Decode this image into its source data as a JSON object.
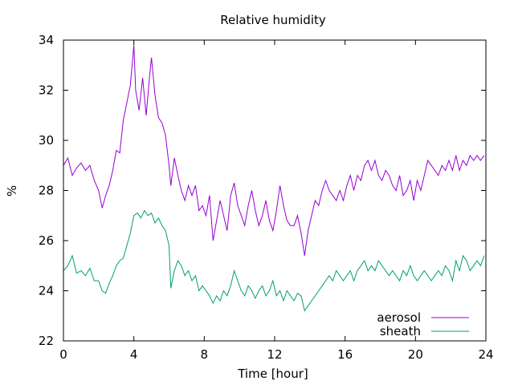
{
  "chart_data": {
    "type": "line",
    "title": "Relative humidity",
    "xlabel": "Time [hour]",
    "ylabel": "%",
    "xlim": [
      0,
      24
    ],
    "ylim": [
      22,
      34
    ],
    "xticks": [
      0,
      4,
      8,
      12,
      16,
      20,
      24
    ],
    "yticks": [
      22,
      24,
      26,
      28,
      30,
      32,
      34
    ],
    "grid": false,
    "legend_position": "bottom-right",
    "series": [
      {
        "name": "aerosol",
        "color": "#9400d3",
        "points": [
          [
            0.0,
            29.0
          ],
          [
            0.25,
            29.3
          ],
          [
            0.5,
            28.6
          ],
          [
            0.75,
            28.9
          ],
          [
            1.0,
            29.1
          ],
          [
            1.25,
            28.8
          ],
          [
            1.5,
            29.0
          ],
          [
            1.75,
            28.4
          ],
          [
            2.0,
            28.0
          ],
          [
            2.2,
            27.3
          ],
          [
            2.4,
            27.8
          ],
          [
            2.6,
            28.2
          ],
          [
            2.8,
            28.8
          ],
          [
            3.0,
            29.6
          ],
          [
            3.2,
            29.5
          ],
          [
            3.4,
            30.8
          ],
          [
            3.6,
            31.5
          ],
          [
            3.8,
            32.2
          ],
          [
            4.0,
            33.8
          ],
          [
            4.1,
            32.0
          ],
          [
            4.3,
            31.2
          ],
          [
            4.5,
            32.5
          ],
          [
            4.7,
            31.0
          ],
          [
            4.9,
            32.6
          ],
          [
            5.0,
            33.3
          ],
          [
            5.2,
            31.8
          ],
          [
            5.4,
            30.9
          ],
          [
            5.6,
            30.7
          ],
          [
            5.8,
            30.2
          ],
          [
            6.0,
            29.0
          ],
          [
            6.1,
            28.2
          ],
          [
            6.3,
            29.3
          ],
          [
            6.5,
            28.6
          ],
          [
            6.7,
            28.0
          ],
          [
            6.9,
            27.6
          ],
          [
            7.1,
            28.2
          ],
          [
            7.3,
            27.8
          ],
          [
            7.5,
            28.2
          ],
          [
            7.7,
            27.2
          ],
          [
            7.9,
            27.4
          ],
          [
            8.1,
            27.0
          ],
          [
            8.3,
            27.8
          ],
          [
            8.5,
            26.0
          ],
          [
            8.7,
            26.8
          ],
          [
            8.9,
            27.6
          ],
          [
            9.1,
            27.0
          ],
          [
            9.3,
            26.4
          ],
          [
            9.5,
            27.8
          ],
          [
            9.7,
            28.3
          ],
          [
            9.9,
            27.4
          ],
          [
            10.1,
            27.0
          ],
          [
            10.3,
            26.6
          ],
          [
            10.5,
            27.4
          ],
          [
            10.7,
            28.0
          ],
          [
            10.9,
            27.2
          ],
          [
            11.1,
            26.6
          ],
          [
            11.3,
            27.0
          ],
          [
            11.5,
            27.6
          ],
          [
            11.7,
            26.8
          ],
          [
            11.9,
            26.4
          ],
          [
            12.1,
            27.2
          ],
          [
            12.3,
            28.2
          ],
          [
            12.5,
            27.4
          ],
          [
            12.7,
            26.8
          ],
          [
            12.9,
            26.6
          ],
          [
            13.1,
            26.6
          ],
          [
            13.3,
            27.0
          ],
          [
            13.5,
            26.3
          ],
          [
            13.7,
            25.4
          ],
          [
            13.9,
            26.4
          ],
          [
            14.1,
            27.0
          ],
          [
            14.3,
            27.6
          ],
          [
            14.5,
            27.4
          ],
          [
            14.7,
            28.0
          ],
          [
            14.9,
            28.4
          ],
          [
            15.1,
            28.0
          ],
          [
            15.3,
            27.8
          ],
          [
            15.5,
            27.6
          ],
          [
            15.7,
            28.0
          ],
          [
            15.9,
            27.6
          ],
          [
            16.1,
            28.2
          ],
          [
            16.3,
            28.6
          ],
          [
            16.5,
            28.0
          ],
          [
            16.7,
            28.6
          ],
          [
            16.9,
            28.4
          ],
          [
            17.1,
            29.0
          ],
          [
            17.3,
            29.2
          ],
          [
            17.5,
            28.8
          ],
          [
            17.7,
            29.2
          ],
          [
            17.9,
            28.6
          ],
          [
            18.1,
            28.4
          ],
          [
            18.3,
            28.8
          ],
          [
            18.5,
            28.6
          ],
          [
            18.7,
            28.2
          ],
          [
            18.9,
            28.0
          ],
          [
            19.1,
            28.6
          ],
          [
            19.3,
            27.8
          ],
          [
            19.5,
            28.0
          ],
          [
            19.7,
            28.4
          ],
          [
            19.9,
            27.6
          ],
          [
            20.1,
            28.4
          ],
          [
            20.3,
            28.0
          ],
          [
            20.5,
            28.6
          ],
          [
            20.7,
            29.2
          ],
          [
            20.9,
            29.0
          ],
          [
            21.1,
            28.8
          ],
          [
            21.3,
            28.6
          ],
          [
            21.5,
            29.0
          ],
          [
            21.7,
            28.8
          ],
          [
            21.9,
            29.2
          ],
          [
            22.1,
            28.8
          ],
          [
            22.3,
            29.4
          ],
          [
            22.5,
            28.8
          ],
          [
            22.7,
            29.2
          ],
          [
            22.9,
            29.0
          ],
          [
            23.1,
            29.4
          ],
          [
            23.3,
            29.2
          ],
          [
            23.5,
            29.4
          ],
          [
            23.7,
            29.2
          ],
          [
            23.9,
            29.4
          ]
        ]
      },
      {
        "name": "sheath",
        "color": "#009e73",
        "points": [
          [
            0.0,
            24.8
          ],
          [
            0.25,
            25.0
          ],
          [
            0.5,
            25.4
          ],
          [
            0.75,
            24.7
          ],
          [
            1.0,
            24.8
          ],
          [
            1.25,
            24.6
          ],
          [
            1.5,
            24.9
          ],
          [
            1.75,
            24.4
          ],
          [
            2.0,
            24.4
          ],
          [
            2.2,
            24.0
          ],
          [
            2.4,
            23.9
          ],
          [
            2.6,
            24.3
          ],
          [
            2.8,
            24.6
          ],
          [
            3.0,
            25.0
          ],
          [
            3.2,
            25.2
          ],
          [
            3.4,
            25.3
          ],
          [
            3.6,
            25.8
          ],
          [
            3.8,
            26.3
          ],
          [
            4.0,
            27.0
          ],
          [
            4.2,
            27.1
          ],
          [
            4.4,
            26.9
          ],
          [
            4.6,
            27.2
          ],
          [
            4.8,
            27.0
          ],
          [
            5.0,
            27.1
          ],
          [
            5.2,
            26.7
          ],
          [
            5.4,
            26.9
          ],
          [
            5.6,
            26.6
          ],
          [
            5.8,
            26.4
          ],
          [
            6.0,
            25.8
          ],
          [
            6.1,
            24.1
          ],
          [
            6.3,
            24.8
          ],
          [
            6.5,
            25.2
          ],
          [
            6.7,
            25.0
          ],
          [
            6.9,
            24.6
          ],
          [
            7.1,
            24.8
          ],
          [
            7.3,
            24.4
          ],
          [
            7.5,
            24.6
          ],
          [
            7.7,
            24.0
          ],
          [
            7.9,
            24.2
          ],
          [
            8.1,
            24.0
          ],
          [
            8.3,
            23.8
          ],
          [
            8.5,
            23.5
          ],
          [
            8.7,
            23.8
          ],
          [
            8.9,
            23.6
          ],
          [
            9.1,
            24.0
          ],
          [
            9.3,
            23.8
          ],
          [
            9.5,
            24.2
          ],
          [
            9.7,
            24.8
          ],
          [
            9.9,
            24.4
          ],
          [
            10.1,
            24.0
          ],
          [
            10.3,
            23.8
          ],
          [
            10.5,
            24.2
          ],
          [
            10.7,
            24.0
          ],
          [
            10.9,
            23.7
          ],
          [
            11.1,
            24.0
          ],
          [
            11.3,
            24.2
          ],
          [
            11.5,
            23.8
          ],
          [
            11.7,
            24.0
          ],
          [
            11.9,
            24.4
          ],
          [
            12.1,
            23.8
          ],
          [
            12.3,
            24.0
          ],
          [
            12.5,
            23.6
          ],
          [
            12.7,
            24.0
          ],
          [
            12.9,
            23.8
          ],
          [
            13.1,
            23.6
          ],
          [
            13.3,
            23.9
          ],
          [
            13.5,
            23.8
          ],
          [
            13.7,
            23.2
          ],
          [
            13.9,
            23.4
          ],
          [
            14.1,
            23.6
          ],
          [
            14.3,
            23.8
          ],
          [
            14.5,
            24.0
          ],
          [
            14.7,
            24.2
          ],
          [
            14.9,
            24.4
          ],
          [
            15.1,
            24.6
          ],
          [
            15.3,
            24.4
          ],
          [
            15.5,
            24.8
          ],
          [
            15.7,
            24.6
          ],
          [
            15.9,
            24.4
          ],
          [
            16.1,
            24.6
          ],
          [
            16.3,
            24.8
          ],
          [
            16.5,
            24.4
          ],
          [
            16.7,
            24.8
          ],
          [
            16.9,
            25.0
          ],
          [
            17.1,
            25.2
          ],
          [
            17.3,
            24.8
          ],
          [
            17.5,
            25.0
          ],
          [
            17.7,
            24.8
          ],
          [
            17.9,
            25.2
          ],
          [
            18.1,
            25.0
          ],
          [
            18.3,
            24.8
          ],
          [
            18.5,
            24.6
          ],
          [
            18.7,
            24.8
          ],
          [
            18.9,
            24.6
          ],
          [
            19.1,
            24.4
          ],
          [
            19.3,
            24.8
          ],
          [
            19.5,
            24.6
          ],
          [
            19.7,
            25.0
          ],
          [
            19.9,
            24.6
          ],
          [
            20.1,
            24.4
          ],
          [
            20.3,
            24.6
          ],
          [
            20.5,
            24.8
          ],
          [
            20.7,
            24.6
          ],
          [
            20.9,
            24.4
          ],
          [
            21.1,
            24.6
          ],
          [
            21.3,
            24.8
          ],
          [
            21.5,
            24.6
          ],
          [
            21.7,
            25.0
          ],
          [
            21.9,
            24.8
          ],
          [
            22.1,
            24.4
          ],
          [
            22.3,
            25.2
          ],
          [
            22.5,
            24.8
          ],
          [
            22.7,
            25.4
          ],
          [
            22.9,
            25.2
          ],
          [
            23.1,
            24.8
          ],
          [
            23.3,
            25.0
          ],
          [
            23.5,
            25.2
          ],
          [
            23.7,
            25.0
          ],
          [
            23.9,
            25.4
          ]
        ]
      }
    ]
  }
}
